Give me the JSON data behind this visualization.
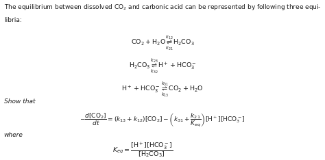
{
  "background_color": "#ffffff",
  "text_color": "#1a1a1a",
  "figsize": [
    4.74,
    2.34
  ],
  "dpi": 100,
  "intro_line1": "The equilibrium between dissolved CO$_2$ and carbonic acid can be represented by following three equi-",
  "intro_line2": "libria:",
  "eq1": "$\\mathrm{CO_2 + H_2O} \\underset{k_{21}}{\\overset{k_{12}}{\\rightleftharpoons}} \\mathrm{H_2CO_3}$",
  "eq2": "$\\mathrm{H_2CO_3} \\underset{k_{32}}{\\overset{k_{23}}{\\rightleftharpoons}} \\mathrm{H^+ + HCO_3^-}$",
  "eq3": "$\\mathrm{H^+ + HCO_3^-} \\underset{k_{13}}{\\overset{k_{31}}{\\rightleftharpoons}} \\mathrm{CO_2 + H_2O}$",
  "show_that": "Show that",
  "main_eq": "$-\\dfrac{d[\\mathrm{CO_2}]}{dt} = (k_{13} + k_{12})[\\mathrm{CO_2}] - \\left(k_{31} + \\dfrac{k_{21}}{K_{eq}}\\right)[\\mathrm{H^+}][\\mathrm{HCO_3^-}]$",
  "where": "where",
  "keq_eq": "$K_{eq} = \\dfrac{[\\mathrm{H^+}][\\mathrm{HCO_3^-}]}{[\\mathrm{H_2CO_3}]}$",
  "fs_text": 6.5,
  "fs_eq": 6.8,
  "fs_main": 6.5
}
